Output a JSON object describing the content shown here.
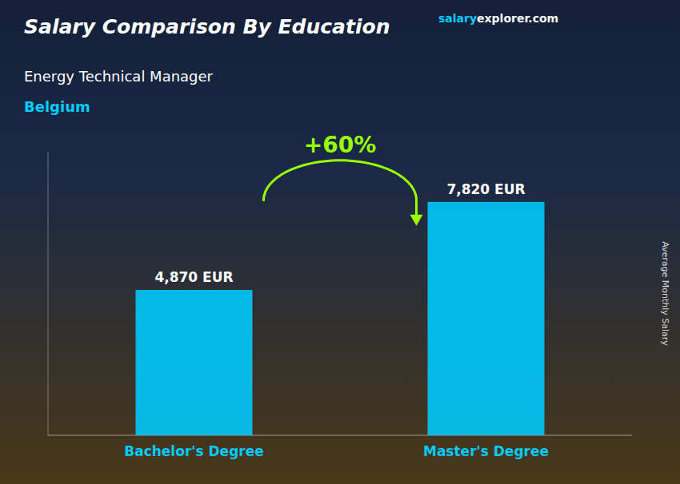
{
  "chart_data": {
    "type": "bar",
    "title": "Salary Comparison By Education",
    "subtitle": "Energy Technical Manager",
    "ylabel": "Average Monthly Salary",
    "categories": [
      "Bachelor's Degree",
      "Master's Degree"
    ],
    "values": [
      4870,
      7820
    ],
    "value_labels": [
      "4,870 EUR",
      "7,820 EUR"
    ],
    "data_labels": true,
    "color": "#00CCFF",
    "ylim": [
      0,
      9500
    ],
    "tick_labels": "x",
    "grid": false,
    "annotations": [
      {
        "text": "Belgium",
        "color": "#00CCFF"
      },
      {
        "text": "salary",
        "color": "#00CCFF"
      },
      {
        "text": "explorer.com",
        "color": "#ffffff"
      },
      {
        "text": "+60%",
        "color": "#99FF00"
      }
    ]
  }
}
